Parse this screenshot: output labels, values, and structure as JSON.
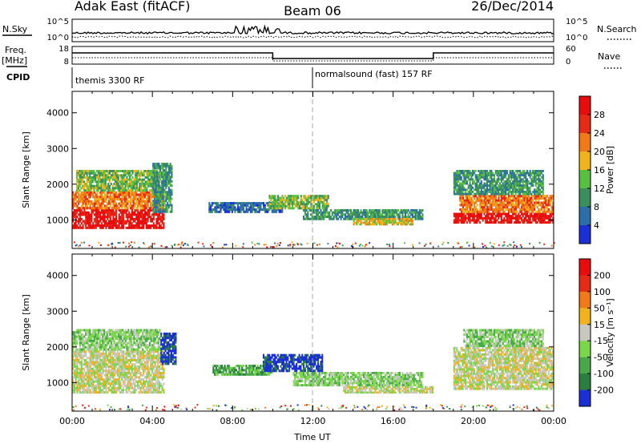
{
  "header": {
    "station": "Adak East (fitACF)",
    "beam": "Beam 06",
    "date": "26/Dec/2014"
  },
  "top_panel": {
    "left_label": "N.Sky",
    "right_label": "N.Search",
    "left_ticks": [
      "10^5",
      "10^0"
    ],
    "right_ticks": [
      "10^5",
      "10^0"
    ]
  },
  "freq_panel": {
    "left_label_1": "Freq.",
    "left_label_2": "[MHz]",
    "right_label": "Nave",
    "left_ticks": [
      "18",
      "8"
    ],
    "right_ticks": [
      "60",
      "0"
    ]
  },
  "cpid": {
    "label": "CPID",
    "segments": [
      {
        "text": "themis 3300 RF",
        "start_hour": 0
      },
      {
        "text": "normalsound (fast) 157 RF",
        "start_hour": 12
      }
    ]
  },
  "chart_data": [
    {
      "type": "heatmap",
      "name": "power",
      "ylabel": "Slant Range [km]",
      "y_ticks": [
        "1000",
        "2000",
        "3000",
        "4000"
      ],
      "ylim": [
        200,
        4600
      ],
      "x_ticks": [
        "00:00",
        "04:00",
        "08:00",
        "12:00",
        "16:00",
        "20:00",
        "00:00"
      ],
      "xlim_hours": [
        0,
        24
      ],
      "colorbar": {
        "label": "Power [dB]",
        "ticks": [
          "4",
          "8",
          "12",
          "16",
          "20",
          "24",
          "28"
        ],
        "colors": [
          "#1a2fd6",
          "#2c6fa8",
          "#3a8f5c",
          "#58c040",
          "#f2b21d",
          "#f07a18",
          "#e62a14",
          "#e80c0c"
        ]
      },
      "regions": [
        {
          "x0": 0.0,
          "x1": 4.6,
          "y0": 750,
          "y1": 1300,
          "level": 7
        },
        {
          "x0": 0.0,
          "x1": 4.6,
          "y0": 1300,
          "y1": 1800,
          "level": 5
        },
        {
          "x0": 0.2,
          "x1": 4.4,
          "y0": 1800,
          "y1": 2400,
          "level": 3
        },
        {
          "x0": 4.0,
          "x1": 5.0,
          "y0": 1200,
          "y1": 2600,
          "level": 2
        },
        {
          "x0": 6.8,
          "x1": 10.5,
          "y0": 1200,
          "y1": 1500,
          "level": 1
        },
        {
          "x0": 9.8,
          "x1": 12.8,
          "y0": 1300,
          "y1": 1700,
          "level": 3
        },
        {
          "x0": 11.5,
          "x1": 17.5,
          "y0": 1000,
          "y1": 1300,
          "level": 2
        },
        {
          "x0": 14.0,
          "x1": 17.0,
          "y0": 850,
          "y1": 1050,
          "level": 4
        },
        {
          "x0": 19.0,
          "x1": 24.0,
          "y0": 900,
          "y1": 1200,
          "level": 7
        },
        {
          "x0": 19.3,
          "x1": 24.0,
          "y0": 1200,
          "y1": 1700,
          "level": 5
        },
        {
          "x0": 19.0,
          "x1": 23.5,
          "y0": 1700,
          "y1": 2400,
          "level": 2
        }
      ]
    },
    {
      "type": "heatmap",
      "name": "velocity",
      "ylabel": "Slant Range [km]",
      "y_ticks": [
        "1000",
        "2000",
        "3000",
        "4000"
      ],
      "ylim": [
        200,
        4600
      ],
      "x_ticks": [
        "00:00",
        "04:00",
        "08:00",
        "12:00",
        "16:00",
        "20:00",
        "00:00"
      ],
      "xlim_hours": [
        0,
        24
      ],
      "xlabel": "Time UT",
      "colorbar": {
        "label": "Velocity [m s⁻¹]",
        "ticks": [
          "200",
          "100",
          "50",
          "15",
          "-15",
          "-50",
          "-100",
          "-200"
        ],
        "colors": [
          "#1a2fd6",
          "#2a7e3e",
          "#48a84a",
          "#78d848",
          "#c8c8c0",
          "#f2b21d",
          "#f07a18",
          "#e62a14",
          "#e80c0c"
        ]
      },
      "regions": [
        {
          "x0": 0.0,
          "x1": 4.6,
          "y0": 700,
          "y1": 1900,
          "level": 4
        },
        {
          "x0": 0.0,
          "x1": 4.4,
          "y0": 1900,
          "y1": 2500,
          "level": 3
        },
        {
          "x0": 4.4,
          "x1": 5.2,
          "y0": 1500,
          "y1": 2400,
          "level": 0
        },
        {
          "x0": 7.0,
          "x1": 10.0,
          "y0": 1200,
          "y1": 1500,
          "level": 2
        },
        {
          "x0": 9.5,
          "x1": 12.5,
          "y0": 1300,
          "y1": 1800,
          "level": 0
        },
        {
          "x0": 11.0,
          "x1": 17.5,
          "y0": 900,
          "y1": 1300,
          "level": 3
        },
        {
          "x0": 13.5,
          "x1": 18.0,
          "y0": 700,
          "y1": 900,
          "level": 4
        },
        {
          "x0": 19.0,
          "x1": 24.0,
          "y0": 800,
          "y1": 2000,
          "level": 4
        },
        {
          "x0": 19.5,
          "x1": 23.5,
          "y0": 2000,
          "y1": 2500,
          "level": 3
        }
      ]
    }
  ]
}
